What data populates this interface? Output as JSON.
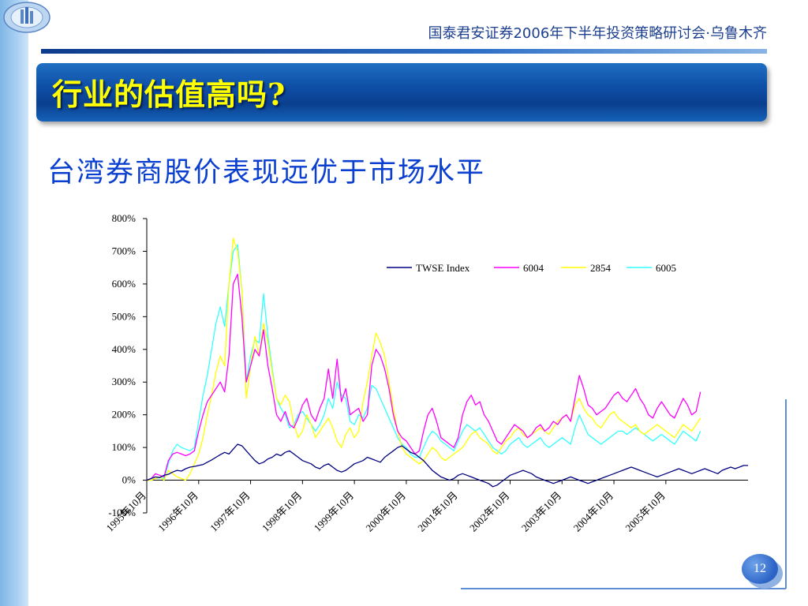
{
  "header": {
    "conference_title": "国泰君安证券2006年下半年投资策略研讨会·乌鲁木齐",
    "slide_title": "行业的估值高吗?",
    "subtitle": "台湾券商股价表现远优于市场水平"
  },
  "footer": {
    "page_number": "12"
  },
  "colors": {
    "banner": "#0e4fa6",
    "title_text": "#ffff00",
    "subtitle_text": "#0a3fd0",
    "TWSE Index": "#000080",
    "6004": "#ff00ff",
    "2854": "#ffff00",
    "6005": "#33ffff"
  },
  "chart_data": {
    "type": "line",
    "ylim": [
      -100,
      800
    ],
    "y_ticks": [
      "-100%",
      "0%",
      "100%",
      "200%",
      "300%",
      "400%",
      "500%",
      "600%",
      "700%",
      "800%"
    ],
    "x_ticks": [
      "1995年10月",
      "1996年10月",
      "1997年10月",
      "1998年10月",
      "1999年10月",
      "2000年10月",
      "2001年10月",
      "2002年10月",
      "2003年10月",
      "2004年10月",
      "2005年10月"
    ],
    "legend_position": "top-right",
    "x_start": "1995-10",
    "x_step_months": 1,
    "series": [
      {
        "name": "TWSE Index",
        "values": [
          0,
          5,
          10,
          8,
          15,
          18,
          25,
          30,
          28,
          35,
          40,
          42,
          45,
          48,
          55,
          62,
          70,
          78,
          85,
          80,
          95,
          110,
          105,
          90,
          75,
          60,
          50,
          55,
          65,
          70,
          80,
          75,
          85,
          90,
          80,
          70,
          60,
          55,
          50,
          40,
          35,
          45,
          50,
          40,
          30,
          25,
          30,
          40,
          50,
          55,
          60,
          70,
          65,
          60,
          55,
          70,
          80,
          90,
          100,
          105,
          95,
          85,
          80,
          70,
          60,
          45,
          30,
          20,
          10,
          5,
          0,
          5,
          15,
          20,
          15,
          10,
          5,
          0,
          -5,
          -10,
          -20,
          -15,
          -5,
          5,
          15,
          20,
          25,
          30,
          25,
          20,
          10,
          5,
          0,
          -5,
          -10,
          -5,
          0,
          5,
          10,
          5,
          0,
          -5,
          -10,
          -5,
          0,
          5,
          10,
          15,
          20,
          25,
          30,
          35,
          40,
          35,
          30,
          25,
          20,
          15,
          10,
          15,
          20,
          25,
          30,
          35,
          30,
          25,
          20,
          25,
          30,
          35,
          30,
          25,
          20,
          30,
          35,
          40,
          35,
          40,
          45,
          45
        ]
      },
      {
        "name": "6004",
        "values": [
          0,
          5,
          20,
          15,
          10,
          60,
          80,
          85,
          80,
          75,
          80,
          90,
          150,
          200,
          240,
          260,
          280,
          300,
          270,
          380,
          600,
          630,
          500,
          300,
          350,
          400,
          380,
          460,
          350,
          280,
          200,
          180,
          210,
          170,
          160,
          190,
          230,
          250,
          200,
          180,
          220,
          250,
          340,
          250,
          370,
          240,
          280,
          200,
          210,
          220,
          180,
          200,
          350,
          400,
          380,
          340,
          280,
          200,
          150,
          130,
          120,
          100,
          80,
          90,
          150,
          200,
          220,
          180,
          130,
          120,
          110,
          100,
          130,
          200,
          240,
          260,
          230,
          240,
          200,
          180,
          150,
          120,
          110,
          130,
          150,
          170,
          160,
          150,
          130,
          140,
          160,
          170,
          150,
          160,
          180,
          170,
          190,
          200,
          180,
          250,
          320,
          280,
          230,
          220,
          200,
          210,
          220,
          240,
          260,
          270,
          250,
          240,
          260,
          280,
          250,
          230,
          200,
          190,
          220,
          240,
          220,
          200,
          190,
          220,
          250,
          230,
          200,
          210,
          270
        ]
      },
      {
        "name": "2854",
        "values": [
          0,
          0,
          5,
          10,
          0,
          30,
          20,
          10,
          5,
          0,
          20,
          50,
          80,
          130,
          200,
          260,
          330,
          380,
          350,
          600,
          740,
          700,
          580,
          250,
          350,
          440,
          380,
          480,
          420,
          330,
          250,
          230,
          260,
          240,
          170,
          130,
          150,
          200,
          170,
          130,
          150,
          170,
          190,
          160,
          120,
          100,
          140,
          160,
          130,
          150,
          240,
          300,
          380,
          450,
          420,
          380,
          300,
          220,
          150,
          100,
          80,
          70,
          60,
          50,
          60,
          80,
          100,
          90,
          70,
          60,
          70,
          80,
          90,
          100,
          120,
          140,
          150,
          130,
          120,
          110,
          90,
          80,
          100,
          120,
          130,
          150,
          160,
          140,
          130,
          140,
          150,
          160,
          150,
          140,
          160,
          180,
          190,
          200,
          180,
          230,
          250,
          220,
          200,
          190,
          170,
          160,
          180,
          200,
          210,
          190,
          180,
          170,
          160,
          170,
          150,
          140,
          150,
          160,
          170,
          160,
          150,
          140,
          130,
          150,
          170,
          160,
          150,
          170,
          190
        ]
      },
      {
        "name": "6005",
        "values": [
          0,
          0,
          5,
          8,
          5,
          50,
          90,
          110,
          100,
          95,
          90,
          100,
          180,
          260,
          320,
          400,
          480,
          530,
          470,
          600,
          700,
          720,
          580,
          300,
          380,
          430,
          420,
          570,
          440,
          340,
          250,
          220,
          200,
          160,
          170,
          200,
          210,
          190,
          170,
          150,
          170,
          200,
          250,
          220,
          300,
          260,
          250,
          180,
          170,
          200,
          190,
          220,
          290,
          280,
          250,
          220,
          190,
          160,
          130,
          110,
          100,
          80,
          70,
          70,
          100,
          130,
          150,
          140,
          120,
          110,
          100,
          90,
          120,
          150,
          170,
          160,
          150,
          160,
          140,
          120,
          100,
          90,
          80,
          90,
          110,
          120,
          130,
          110,
          100,
          110,
          120,
          130,
          110,
          100,
          110,
          120,
          130,
          120,
          110,
          160,
          200,
          170,
          140,
          130,
          120,
          110,
          120,
          130,
          140,
          150,
          150,
          140,
          150,
          160,
          150,
          140,
          130,
          120,
          130,
          140,
          130,
          120,
          110,
          130,
          150,
          140,
          130,
          120,
          150
        ]
      }
    ]
  }
}
